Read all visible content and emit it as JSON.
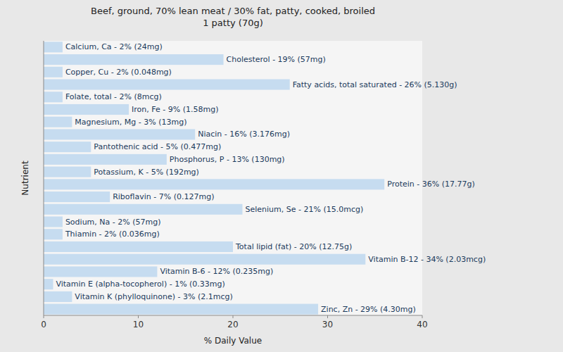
{
  "chart_data": {
    "type": "bar",
    "orientation": "horizontal",
    "title": "Beef, ground, 70% lean meat / 30% fat, patty, cooked, broiled\n1 patty (70g)",
    "xlabel": "% Daily Value",
    "ylabel": "Nutrient",
    "categories": [
      "Calcium, Ca - 2% (24mg)",
      "Cholesterol - 19% (57mg)",
      "Copper, Cu - 2% (0.048mg)",
      "Fatty acids, total saturated - 26% (5.130g)",
      "Folate, total - 2% (8mcg)",
      "Iron, Fe - 9% (1.58mg)",
      "Magnesium, Mg - 3% (13mg)",
      "Niacin - 16% (3.176mg)",
      "Pantothenic acid - 5% (0.477mg)",
      "Phosphorus, P - 13% (130mg)",
      "Potassium, K - 5% (192mg)",
      "Protein - 36% (17.77g)",
      "Riboflavin - 7% (0.127mg)",
      "Selenium, Se - 21% (15.0mcg)",
      "Sodium, Na - 2% (57mg)",
      "Thiamin - 2% (0.036mg)",
      "Total lipid (fat) - 20% (12.75g)",
      "Vitamin B-12 - 34% (2.03mcg)",
      "Vitamin B-6 - 12% (0.235mg)",
      "Vitamin E (alpha-tocopherol) - 1% (0.33mg)",
      "Vitamin K (phylloquinone) - 3% (2.1mcg)",
      "Zinc, Zn - 29% (4.30mg)"
    ],
    "values": [
      2,
      19,
      2,
      26,
      2,
      9,
      3,
      16,
      5,
      13,
      5,
      36,
      7,
      21,
      2,
      2,
      20,
      34,
      12,
      1,
      3,
      29
    ],
    "color": "#c6dcf0",
    "xlim": [
      0,
      40
    ],
    "xticks": [
      0,
      10,
      20,
      30,
      40
    ],
    "grid": false,
    "tick_labels": "x"
  }
}
